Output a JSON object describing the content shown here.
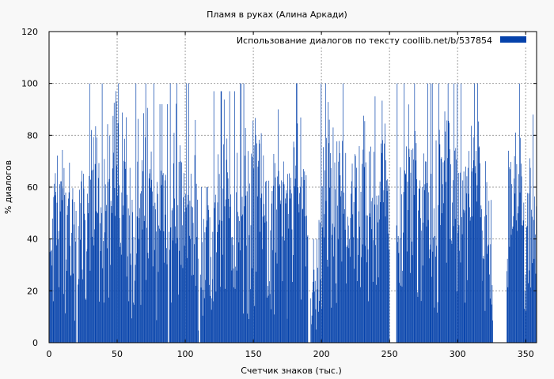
{
  "chart_data": {
    "type": "bar",
    "title": "Пламя в руках (Алина Аркади)",
    "xlabel": "Счетчик знаков (тыс.)",
    "ylabel": "% диалогов",
    "xlim": [
      0,
      358
    ],
    "ylim": [
      0,
      120
    ],
    "xticks": [
      0,
      50,
      100,
      150,
      200,
      250,
      300,
      350
    ],
    "yticks": [
      0,
      20,
      40,
      60,
      80,
      100,
      120
    ],
    "grid": true,
    "legend_position": "top-right",
    "series": [
      {
        "name": "Использование диалогов по тексту  coollib.net/b/537854",
        "color": "#0542ab",
        "bin_width": 0.4,
        "segments": [
          {
            "start": 0,
            "end": 20,
            "peak": 85,
            "base": 30,
            "seed": 11
          },
          {
            "start": 21,
            "end": 28,
            "peak": 78,
            "base": 20,
            "seed": 12
          },
          {
            "start": 28,
            "end": 40,
            "peak": 100,
            "base": 40,
            "seed": 13
          },
          {
            "start": 40,
            "end": 60,
            "peak": 100,
            "base": 50,
            "seed": 14
          },
          {
            "start": 60,
            "end": 80,
            "peak": 100,
            "base": 45,
            "seed": 15
          },
          {
            "start": 80,
            "end": 87,
            "peak": 92,
            "base": 35,
            "seed": 16
          },
          {
            "start": 88,
            "end": 100,
            "peak": 100,
            "base": 40,
            "seed": 17
          },
          {
            "start": 100,
            "end": 110,
            "peak": 100,
            "base": 30,
            "seed": 18
          },
          {
            "start": 111,
            "end": 120,
            "peak": 60,
            "base": 10,
            "seed": 19
          },
          {
            "start": 120,
            "end": 140,
            "peak": 97,
            "base": 40,
            "seed": 20
          },
          {
            "start": 140,
            "end": 160,
            "peak": 100,
            "base": 45,
            "seed": 21
          },
          {
            "start": 160,
            "end": 175,
            "peak": 90,
            "base": 30,
            "seed": 22
          },
          {
            "start": 175,
            "end": 190,
            "peak": 100,
            "base": 40,
            "seed": 23
          },
          {
            "start": 192,
            "end": 198,
            "peak": 40,
            "base": 5,
            "seed": 24
          },
          {
            "start": 198,
            "end": 220,
            "peak": 100,
            "base": 40,
            "seed": 25
          },
          {
            "start": 220,
            "end": 240,
            "peak": 95,
            "base": 40,
            "seed": 26
          },
          {
            "start": 240,
            "end": 250,
            "peak": 98,
            "base": 35,
            "seed": 27
          },
          {
            "start": 255,
            "end": 280,
            "peak": 100,
            "base": 50,
            "seed": 28
          },
          {
            "start": 280,
            "end": 305,
            "peak": 100,
            "base": 45,
            "seed": 29
          },
          {
            "start": 305,
            "end": 318,
            "peak": 100,
            "base": 40,
            "seed": 30
          },
          {
            "start": 318,
            "end": 326,
            "peak": 70,
            "base": 20,
            "seed": 31
          },
          {
            "start": 336,
            "end": 350,
            "peak": 100,
            "base": 40,
            "seed": 32
          },
          {
            "start": 350,
            "end": 358,
            "peak": 88,
            "base": 20,
            "seed": 33
          }
        ]
      }
    ]
  }
}
